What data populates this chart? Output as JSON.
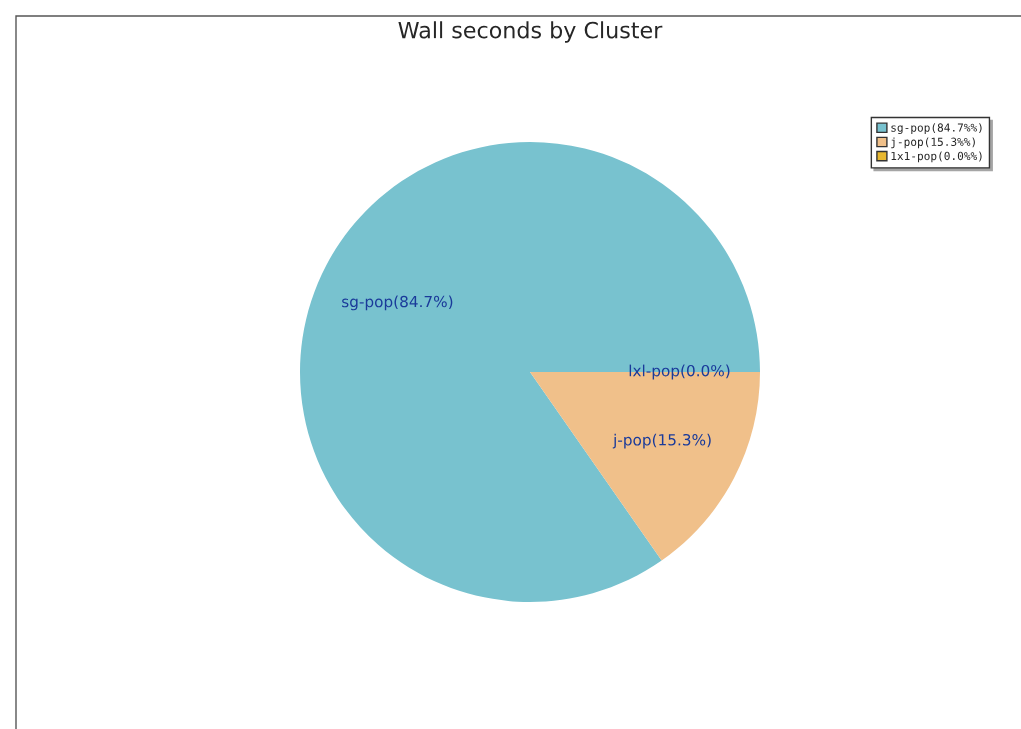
{
  "chart_data": {
    "type": "pie",
    "title": "Wall seconds by Cluster",
    "categories": [
      "sg-pop(84.7%%)",
      "j-pop(15.3%%)",
      "1x1-pop(0.0%%)"
    ],
    "values": [
      84.7,
      15.3,
      0.0
    ],
    "colors": [
      "#78c2cf",
      "#f0c08a",
      "#e8b830"
    ],
    "value_labels": [
      "sg-pop(84.7%)",
      "j-pop(15.3%)",
      "lxl-pop(0.0%)"
    ],
    "legend": "top right"
  }
}
